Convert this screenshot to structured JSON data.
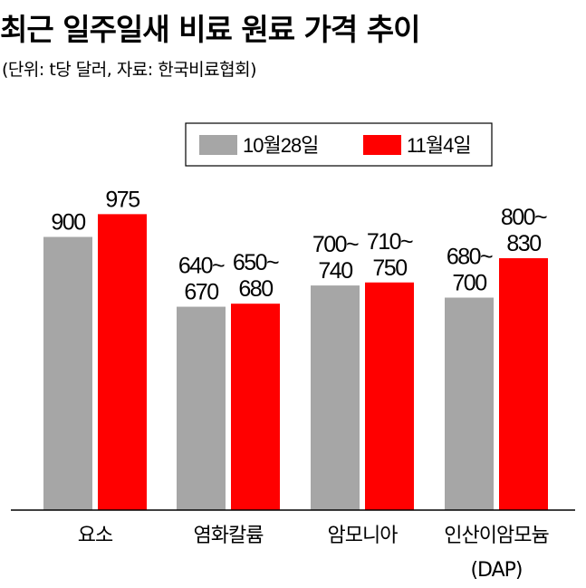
{
  "title": "최근 일주일새 비료 원료 가격 추이",
  "subtitle": "(단위: t당 달러, 자료: 한국비료협회)",
  "colors": {
    "series1": "#a6a6a6",
    "series2": "#ff0000",
    "axis": "#000000"
  },
  "chart_data": {
    "type": "bar",
    "title": "최근 일주일새 비료 원료 가격 추이",
    "unit": "(단위: t당 달러, 자료: 한국비료협회)",
    "categories": [
      {
        "line1": "요소",
        "line2": ""
      },
      {
        "line1": "염화칼륨",
        "line2": ""
      },
      {
        "line1": "암모니아",
        "line2": ""
      },
      {
        "line1": "인산이암모늄",
        "line2": "(DAP)"
      }
    ],
    "ylim": [
      0,
      1050
    ],
    "legend_position": "top-right",
    "series": [
      {
        "name": "10월28일",
        "color": "#a6a6a6",
        "values": [
          900,
          670,
          740,
          700
        ],
        "labels": [
          [
            "900"
          ],
          [
            "640~",
            "670"
          ],
          [
            "700~",
            "740"
          ],
          [
            "680~",
            "700"
          ]
        ]
      },
      {
        "name": "11월4일",
        "color": "#ff0000",
        "values": [
          975,
          680,
          750,
          830
        ],
        "labels": [
          [
            "975"
          ],
          [
            "650~",
            "680"
          ],
          [
            "710~",
            "750"
          ],
          [
            "800~",
            "830"
          ]
        ]
      }
    ]
  }
}
